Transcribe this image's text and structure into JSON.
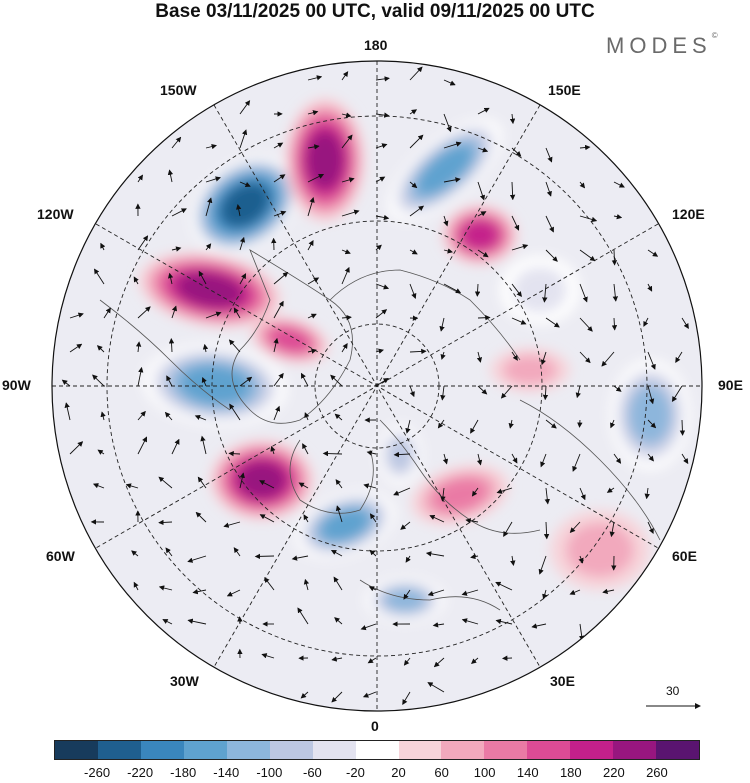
{
  "title": "Base 03/11/2025 00 UTC, valid 09/11/2025 00 UTC",
  "brand": {
    "name": "MODES",
    "mark": "©"
  },
  "longitudes": {
    "top": "180",
    "bottom": "0",
    "left": "90W",
    "right": "90E",
    "ul150": "150W",
    "ul120": "120W",
    "ur150": "150E",
    "ur120": "120E",
    "ll60": "60W",
    "ll30": "30W",
    "lr60": "60E",
    "lr30": "30E"
  },
  "vector_reference": {
    "value": "30"
  },
  "colorbar": {
    "colors": [
      "#173b5c",
      "#1f5f8f",
      "#3a86bd",
      "#5fa2cf",
      "#8db6dc",
      "#bcc7e2",
      "#e3e3f0",
      "#ffffff",
      "#f7d4da",
      "#f2a9bd",
      "#ea7aa5",
      "#dd4b95",
      "#c4208b",
      "#98167f",
      "#5a1470"
    ],
    "labels": [
      "-260",
      "-220",
      "-180",
      "-140",
      "-100",
      "-60",
      "-20",
      "20",
      "60",
      "100",
      "140",
      "180",
      "220",
      "260"
    ]
  },
  "anomaly_centers": [
    {
      "name": "low-alaska",
      "value": -240
    },
    {
      "name": "high-bering",
      "value": 220
    },
    {
      "name": "low-east-siberian-sea",
      "value": -180
    },
    {
      "name": "high-yakutia",
      "value": 200
    },
    {
      "name": "high-canada-pacific",
      "value": 240
    },
    {
      "name": "high-canada-arctic",
      "value": 160
    },
    {
      "name": "low-hudson-bay",
      "value": -180
    },
    {
      "name": "high-greenland-atlantic",
      "value": 240
    },
    {
      "name": "low-north-atlantic",
      "value": -180
    },
    {
      "name": "low-scandinavia",
      "value": -140
    },
    {
      "name": "low-ural",
      "value": -100
    },
    {
      "name": "low-siberia",
      "value": -140
    },
    {
      "name": "high-west-siberia",
      "value": 100
    },
    {
      "name": "high-central-asia",
      "value": 80
    },
    {
      "name": "low-china",
      "value": -60
    },
    {
      "name": "high-north-africa",
      "value": 60
    }
  ]
}
